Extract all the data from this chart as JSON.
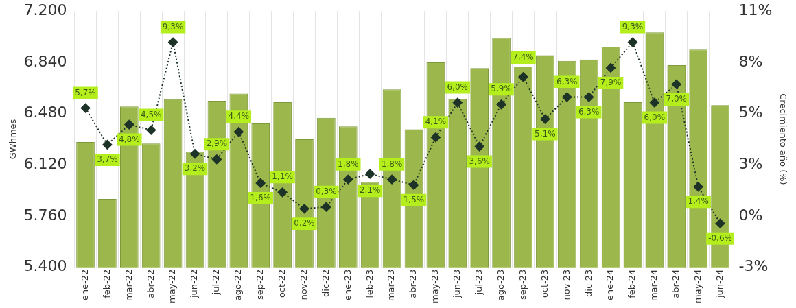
{
  "chart_data": {
    "type": "bar",
    "ylabel": "GWhmes",
    "y2label": "Crecimiento año (%)",
    "categories": [
      "ene-22",
      "feb-22",
      "mar-22",
      "abr-22",
      "may-22",
      "jun-22",
      "jul-22",
      "ago-22",
      "sep-22",
      "oct-22",
      "nov-22",
      "dic-22",
      "ene-23",
      "feb-23",
      "mar-23",
      "abr-23",
      "may-23",
      "jun-23",
      "jul-23",
      "ago-23",
      "sep-23",
      "oct-23",
      "nov-23",
      "dic-23",
      "ene-24",
      "feb-24",
      "mar-24",
      "abr-24",
      "may-24",
      "jun-24"
    ],
    "series": [
      {
        "color": "#9cb84c",
        "values": [
          6280,
          5880,
          6530,
          6270,
          6580,
          6210,
          6570,
          6620,
          6410,
          6560,
          6300,
          6450,
          6390,
          6000,
          6650,
          6370,
          6840,
          6580,
          6800,
          7010,
          6810,
          6890,
          6850,
          6860,
          6950,
          6560,
          7050,
          6820,
          6930,
          6540
        ]
      },
      {
        "type": "line",
        "axis": "y2",
        "color": "#1e3328",
        "marker": "diamond",
        "line_style": "dotted",
        "values": [
          5.7,
          3.7,
          4.8,
          4.5,
          9.3,
          3.2,
          2.9,
          4.4,
          1.6,
          1.1,
          0.2,
          0.3,
          1.8,
          2.1,
          1.8,
          1.5,
          4.1,
          6.0,
          3.6,
          5.9,
          7.4,
          5.1,
          6.3,
          6.3,
          7.9,
          9.3,
          6.0,
          7.0,
          1.4,
          -0.6
        ],
        "value_labels": [
          "5,7%",
          "3,7%",
          "4,8%",
          "4,5%",
          "9,3%",
          "3,2%",
          "2,9%",
          "4,4%",
          "1,6%",
          "1,1%",
          "0,2%",
          "0,3%",
          "1,8%",
          "2,1%",
          "1,8%",
          "1,5%",
          "4,1%",
          "6,0%",
          "3,6%",
          "5,9%",
          "7,4%",
          "5,1%",
          "6,3%",
          "6,3%",
          "7,9%",
          "9,3%",
          "6,0%",
          "7,0%",
          "1,4%",
          "-0,6%"
        ]
      }
    ],
    "ylim": [
      5400,
      7200
    ],
    "yticks": [
      {
        "value": 5400,
        "label": "5.400"
      },
      {
        "value": 5760,
        "label": "5.760"
      },
      {
        "value": 6120,
        "label": "6.120"
      },
      {
        "value": 6480,
        "label": "6.480"
      },
      {
        "value": 6840,
        "label": "6.840"
      },
      {
        "value": 7200,
        "label": "7.200"
      }
    ],
    "y2lim": [
      -3,
      11
    ],
    "y2ticks": [
      {
        "value": -3,
        "label": "-3%"
      },
      {
        "value": -0.2,
        "label": "0%"
      },
      {
        "value": 2.6,
        "label": "3%"
      },
      {
        "value": 5.4,
        "label": "5%"
      },
      {
        "value": 8.2,
        "label": "8%"
      },
      {
        "value": 11,
        "label": "11%"
      }
    ],
    "grid": "x",
    "legend": false
  }
}
